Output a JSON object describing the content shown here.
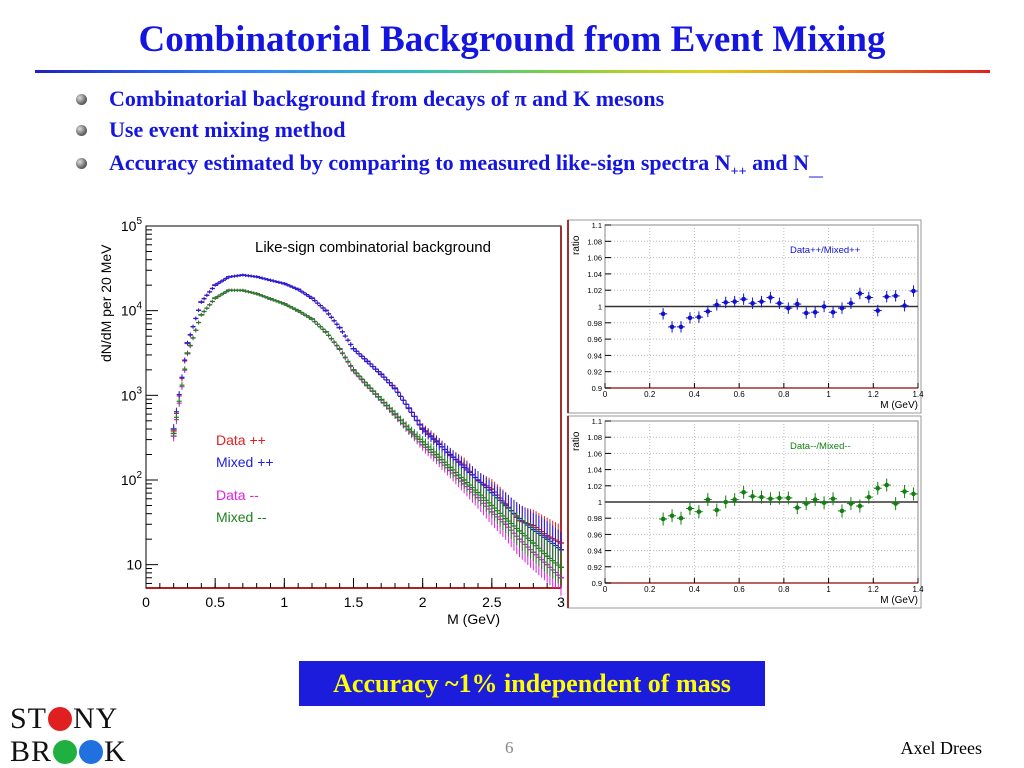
{
  "slide": {
    "title": "Combinatorial Background from Event Mixing",
    "bullets": [
      {
        "text": "Combinatorial background from decays of π and K mesons"
      },
      {
        "text": "Use event mixing method"
      },
      {
        "text_before": "Accuracy estimated by comparing to measured like-sign spectra N",
        "sub1": "++",
        "text_mid": " and N",
        "sub2": "__"
      }
    ],
    "highlight": "Accuracy ~1% independent of mass",
    "page_number": "6",
    "author": "Axel Drees",
    "logo": {
      "line1_a": "ST",
      "line1_b": "NY",
      "line2_a": "BR",
      "line2_b": "K"
    }
  },
  "chart_data": [
    {
      "type": "scatter",
      "title": "Like-sign combinatorial background",
      "xlabel": "M (GeV)",
      "ylabel": "dN/dM per 20 MeV",
      "xlim": [
        0,
        3
      ],
      "ylim": [
        5.3,
        100000
      ],
      "yscale": "log",
      "xticks": [
        "0",
        "0.5",
        "1",
        "1.5",
        "2",
        "2.5",
        "3"
      ],
      "yticks": [
        {
          "base": "10",
          "exp": "5"
        },
        {
          "base": "10",
          "exp": "4"
        },
        {
          "base": "10",
          "exp": "3"
        },
        {
          "base": "10",
          "exp": "2"
        },
        {
          "base": "10",
          "exp": ""
        }
      ],
      "legend_placement": "center-left",
      "x": [
        0.2,
        0.3,
        0.4,
        0.5,
        0.6,
        0.7,
        0.8,
        0.9,
        1.0,
        1.1,
        1.2,
        1.3,
        1.4,
        1.5,
        1.6,
        1.7,
        1.8,
        1.9,
        2.0,
        2.1,
        2.2,
        2.3,
        2.4,
        2.5,
        2.6,
        2.7,
        2.8,
        2.9,
        3.0
      ],
      "series": [
        {
          "name": "Data ++",
          "color": "#e02020",
          "values": [
            380,
            4100,
            12700,
            20100,
            25000,
            26400,
            25200,
            22800,
            20800,
            17900,
            14000,
            10100,
            6300,
            3560,
            2530,
            1760,
            1220,
            700,
            410,
            290,
            195,
            150,
            98,
            78,
            52,
            33,
            29,
            22,
            18
          ]
        },
        {
          "name": "Mixed ++",
          "color": "#2020e0",
          "values": [
            400,
            4170,
            12600,
            20000,
            25100,
            26300,
            25100,
            22900,
            20900,
            17800,
            14100,
            10000,
            6310,
            3550,
            2510,
            1780,
            1200,
            708,
            398,
            282,
            200,
            141,
            100,
            71,
            50,
            35,
            26,
            20,
            15
          ]
        },
        {
          "name": "Data --",
          "color": "#e020e0",
          "values": [
            330,
            3100,
            8950,
            14000,
            17500,
            17300,
            15900,
            13700,
            12100,
            9900,
            8000,
            5600,
            3500,
            1950,
            1300,
            880,
            590,
            390,
            260,
            185,
            130,
            90,
            62,
            42,
            30,
            20,
            14,
            10,
            7
          ]
        },
        {
          "name": "Mixed --",
          "color": "#208020",
          "values": [
            355,
            3160,
            8910,
            14100,
            17400,
            17400,
            15800,
            13800,
            12000,
            10000,
            7940,
            5620,
            3550,
            2000,
            1320,
            891,
            603,
            398,
            282,
            200,
            141,
            100,
            71,
            50,
            35,
            25,
            18,
            12.6,
            9.3
          ]
        }
      ]
    },
    {
      "type": "scatter",
      "legend": "Data++/Mixed++",
      "color": "#1010d0",
      "xlabel": "M (GeV)",
      "ylabel": "ratio",
      "xlim": [
        0,
        1.4
      ],
      "ylim": [
        0.9,
        1.1
      ],
      "grid": true,
      "xticks": [
        "0",
        "0.2",
        "0.4",
        "0.6",
        "0.8",
        "1",
        "1.2",
        "1.4"
      ],
      "yticks": [
        "1.1",
        "1.08",
        "1.06",
        "1.04",
        "1.02",
        "1",
        "0.98",
        "0.96",
        "0.94",
        "0.92",
        "0.9"
      ],
      "x": [
        0.26,
        0.3,
        0.34,
        0.38,
        0.42,
        0.46,
        0.5,
        0.54,
        0.58,
        0.62,
        0.66,
        0.7,
        0.74,
        0.78,
        0.82,
        0.86,
        0.9,
        0.94,
        0.98,
        1.02,
        1.06,
        1.1,
        1.14,
        1.18,
        1.22,
        1.26,
        1.3,
        1.34,
        1.38
      ],
      "values": [
        0.991,
        0.975,
        0.975,
        0.986,
        0.987,
        0.994,
        1.002,
        1.005,
        1.006,
        1.009,
        1.004,
        1.006,
        1.011,
        1.004,
        0.998,
        1.003,
        0.992,
        0.993,
        1.0,
        0.993,
        0.998,
        1.004,
        1.016,
        1.011,
        0.995,
        1.012,
        1.013,
        1.001,
        1.019
      ],
      "yerr": 0.007
    },
    {
      "type": "scatter",
      "legend": "Data--/Mixed--",
      "color": "#108010",
      "xlabel": "M (GeV)",
      "ylabel": "ratio",
      "xlim": [
        0,
        1.4
      ],
      "ylim": [
        0.9,
        1.1
      ],
      "grid": true,
      "xticks": [
        "0",
        "0.2",
        "0.4",
        "0.6",
        "0.8",
        "1",
        "1.2",
        "1.4"
      ],
      "yticks": [
        "1.1",
        "1.08",
        "1.06",
        "1.04",
        "1.02",
        "1",
        "0.98",
        "0.96",
        "0.94",
        "0.92",
        "0.9"
      ],
      "x": [
        0.26,
        0.3,
        0.34,
        0.38,
        0.42,
        0.46,
        0.5,
        0.54,
        0.58,
        0.62,
        0.66,
        0.7,
        0.74,
        0.78,
        0.82,
        0.86,
        0.9,
        0.94,
        0.98,
        1.02,
        1.06,
        1.1,
        1.14,
        1.18,
        1.22,
        1.26,
        1.3,
        1.34,
        1.38
      ],
      "values": [
        0.979,
        0.983,
        0.98,
        0.992,
        0.988,
        1.003,
        0.99,
        1.0,
        1.003,
        1.012,
        1.007,
        1.006,
        1.004,
        1.005,
        1.005,
        0.993,
        0.998,
        1.003,
        0.999,
        1.004,
        0.989,
        0.998,
        0.995,
        1.006,
        1.017,
        1.021,
        0.998,
        1.013,
        1.01
      ],
      "yerr": 0.008
    }
  ]
}
